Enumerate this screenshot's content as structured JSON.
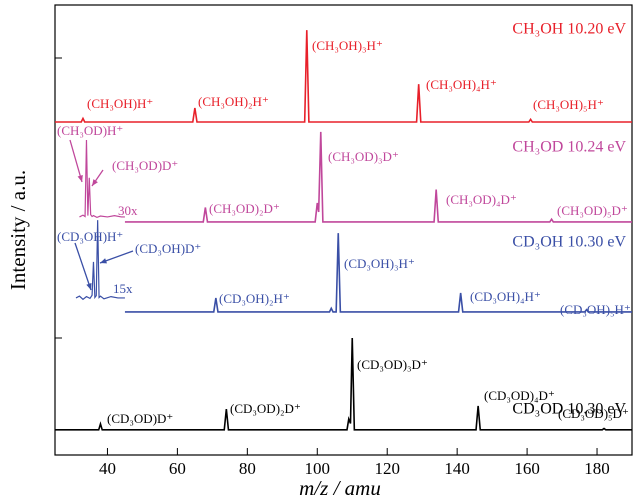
{
  "chart_data": {
    "type": "line",
    "xlabel": "m/z / amu",
    "ylabel": "Intensity / a.u.",
    "xlim": [
      25,
      190
    ],
    "xticks": [
      40,
      60,
      80,
      100,
      120,
      140,
      160,
      180
    ],
    "ylim": [
      0,
      100
    ],
    "series": [
      {
        "name": "CH₃OH 10.20 eV",
        "color": "#e8202a",
        "x": [
          25,
          32.5,
          33,
          33.5,
          64.4,
          65,
          65.6,
          96.4,
          97,
          97.6,
          128.4,
          129,
          129.6,
          160.5,
          161,
          161.5,
          190
        ],
        "values": [
          74,
          74,
          74.8,
          74,
          74,
          77.1,
          74,
          74,
          94.4,
          74,
          74,
          82.4,
          74,
          74,
          74.6,
          74,
          74
        ],
        "peak_labels": [
          "(CH₃OH)H⁺",
          "(CH₃OH)₂H⁺",
          "(CH₃OH)₃H⁺",
          "(CH₃OH)₄H⁺",
          "(CH₃OH)₅H⁺"
        ]
      },
      {
        "name": "CH₃OD 10.24 eV",
        "color": "#c0479b",
        "x": [
          45,
          67.4,
          68,
          68.6,
          99.4,
          100,
          100.4,
          101,
          101.6,
          133.4,
          134,
          134.6,
          166.5,
          167,
          167.5,
          190
        ],
        "values": [
          51.8,
          51.8,
          55,
          51.8,
          51.8,
          56,
          54,
          71.8,
          51.8,
          51.8,
          59,
          51.8,
          51.8,
          52.4,
          51.8,
          51.8
        ],
        "peak_labels": [
          "(CH₃OD)H⁺",
          "(CH₃OD)D⁺",
          "(CH₃OD)₂D⁺",
          "(CH₃OD)₃D⁺",
          "(CH₃OD)₄D⁺",
          "(CH₃OD)₅D⁺"
        ],
        "inset": {
          "label": "30x",
          "x": [
            32,
            33,
            33.6,
            34,
            34.4,
            34.8,
            35.2,
            35.6,
            36,
            37,
            38,
            40,
            42,
            44,
            45
          ],
          "values": [
            52.9,
            53.3,
            53,
            70,
            53.2,
            61.6,
            53.4,
            53,
            53.2,
            52.8,
            53.1,
            52.9,
            53.2,
            52.9,
            52.9
          ]
        }
      },
      {
        "name": "CD₃OH 10.30 eV",
        "color": "#3a4fa6",
        "x": [
          45,
          70.4,
          71,
          71.6,
          103.5,
          104,
          104.5,
          105.4,
          106,
          106.6,
          140.4,
          141,
          141.6,
          176.5,
          177,
          177.5,
          190
        ],
        "values": [
          31.8,
          31.8,
          34.9,
          31.8,
          31.8,
          32.6,
          31.8,
          31.8,
          49.3,
          31.8,
          31.8,
          36,
          31.8,
          31.8,
          32.3,
          31.8,
          31.8
        ],
        "peak_labels": [
          "(CD₃OH)H⁺",
          "(CD₃OH)D⁺",
          "(CD₃OH)₂H⁺",
          "(CD₃OH)₃H⁺",
          "(CD₃OH)₄H⁺",
          "(CD₃OH)₅H⁺"
        ],
        "inset": {
          "label": "15x",
          "x": [
            31,
            32,
            33,
            34,
            35,
            35.6,
            36,
            36.4,
            36.8,
            37.2,
            37.6,
            38,
            39,
            41,
            43,
            45
          ],
          "values": [
            34.9,
            35.3,
            34.6,
            35.2,
            34.8,
            35.5,
            42.9,
            35,
            35.4,
            52.2,
            35,
            35.3,
            34.7,
            35.2,
            34.9,
            34.9
          ]
        }
      },
      {
        "name": "CD₃OD 10.30 eV",
        "color": "#000000",
        "x": [
          25,
          37.5,
          38,
          38.5,
          73.4,
          74,
          74.6,
          108.5,
          109,
          109.5,
          110,
          110.6,
          145.4,
          146,
          146.6,
          181.5,
          182,
          182.5,
          190
        ],
        "values": [
          5.6,
          5.6,
          6.9,
          5.6,
          5.6,
          10.2,
          5.6,
          5.6,
          8,
          7,
          26,
          5.6,
          5.6,
          10.9,
          5.6,
          5.6,
          5.9,
          5.6,
          5.6
        ],
        "peak_labels": [
          "(CD₃OD)D⁺",
          "(CD₃OD)₂D⁺",
          "(CD₃OD)₃D⁺",
          "(CD₃OD)₄D⁺",
          "(CD₃OD)₅D⁺"
        ]
      }
    ]
  }
}
